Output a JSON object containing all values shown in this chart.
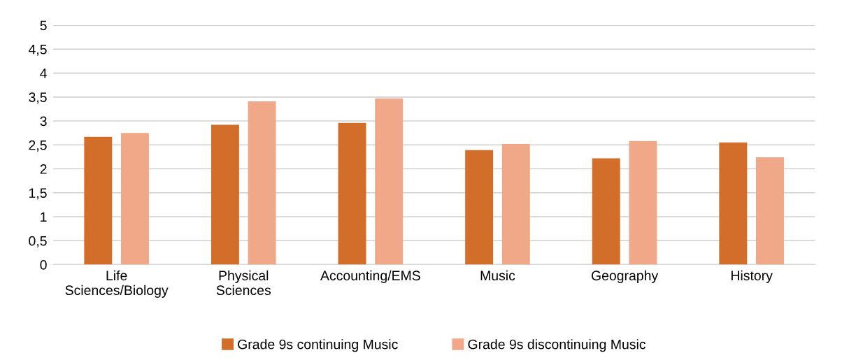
{
  "chart_data": {
    "type": "bar",
    "categories": [
      "Life\nSciences/Biology",
      "Physical\nSciences",
      "Accounting/EMS",
      "Music",
      "Geography",
      "History"
    ],
    "series": [
      {
        "name": "Grade 9s continuing Music",
        "color": "#d26e2a",
        "values": [
          2.67,
          2.92,
          2.96,
          2.39,
          2.22,
          2.55
        ]
      },
      {
        "name": "Grade 9s discontinuing Music",
        "color": "#f0a889",
        "values": [
          2.75,
          3.41,
          3.47,
          2.52,
          2.58,
          2.24
        ]
      }
    ],
    "ylim": [
      0,
      5
    ],
    "yticks": [
      0,
      {
        "value": 0.5,
        "label": "0,5"
      },
      1,
      {
        "value": 1.5,
        "label": "1,5"
      },
      2,
      {
        "value": 2.5,
        "label": "2,5"
      },
      3,
      {
        "value": 3.5,
        "label": "3,5"
      },
      4,
      {
        "value": 4.5,
        "label": "4,5"
      },
      5
    ],
    "grid": "y",
    "legend": "bottom"
  }
}
